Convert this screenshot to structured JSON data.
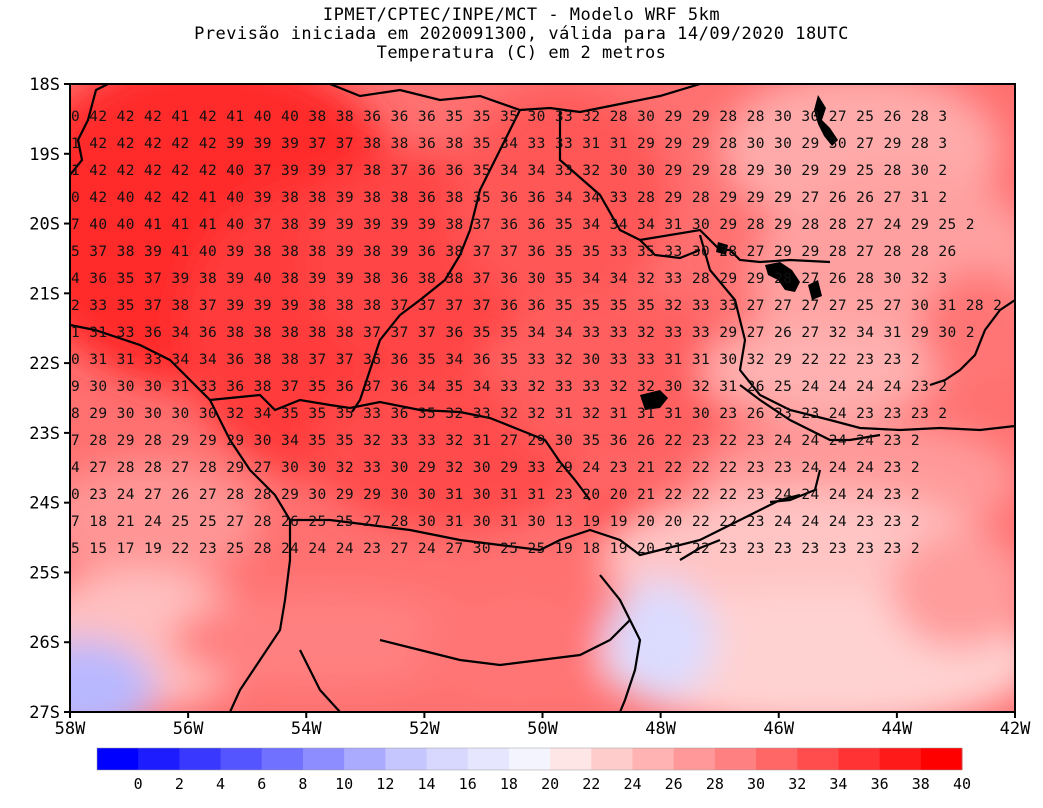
{
  "titles": {
    "line1": "IPMET/CPTEC/INPE/MCT - Modelo WRF 5km",
    "line2": "Previsão iniciada em 2020091300, válida para 14/09/2020 18UTC",
    "line3": "Temperatura (C) em 2 metros"
  },
  "map": {
    "lon_range": [
      -58,
      -42
    ],
    "lat_range": [
      -27,
      -18
    ],
    "lon_labels": [
      "58W",
      "56W",
      "54W",
      "52W",
      "50W",
      "48W",
      "46W",
      "44W",
      "42W"
    ],
    "lat_labels": [
      "18S",
      "19S",
      "20S",
      "21S",
      "22S",
      "23S",
      "24S",
      "25S",
      "26S",
      "27S"
    ],
    "grid_rows": [
      "0 42 42 42 41 42 41 40 40 38 38 36 36 36 35 35 35 30 33 32 28 30 29 29 28 28 30 30 27 25 26 28 3",
      "1 42 42 42 42 42 39 39 39 37 37 38 38 36 38 35 34 33 33 31 31 29 29 29 28 30 30 29 30 27 29 28 3",
      "1 42 42 42 42 42 40 37 39 39 37 38 37 36 36 35 34 34 33 32 30 30 29 29 28 29 30 29 29 25 28 30 2",
      "0 42 40 42 42 41 40 39 38 38 39 38 38 36 38 35 36 36 34 34 33 28 29 28 29 29 29 27 26 26 27 31 2",
      "7 40 40 41 41 41 40 37 38 39 39 39 39 39 38 37 36 36 35 34 34 34 31 30 29 28 29 28 28 27 24 29 25 2",
      "5 37 38 39 41 40 39 38 38 38 39 38 39 36 38 37 37 36 35 35 33 35 33 30 28 27 29 29 28 27 28 28 26",
      "4 36 35 37 39 38 39 40 38 39 39 38 36 38 38 37 36 30 35 34 34 32 33 28 29 29 28 27 26 28 30 32 3",
      "2 33 35 37 38 37 39 39 39 38 38 38 37 37 37 37 36 36 35 35 35 35 32 33 33 27 27 27 27 25 27 30 31 28 2",
      "1 31 33 36 34 36 38 38 38 38 38 37 37 37 36 35 35 34 34 33 33 32 33 33 29 27 26 27 32 34 31 29 30 2",
      "0 31 31 33 34 34 36 38 38 37 37 36 36 35 34 36 35 33 32 30 33 33 31 31 30 32 29 22 22 23 23 2",
      "9 30 30 30 31 33 36 38 37 35 36 37 36 34 35 34 33 32 33 33 32 32 30 32 31 26 25 24 24 24 24 23 2",
      "8 29 30 30 30 30 32 34 35 35 35 33 36 35 32 33 32 32 31 32 31 31 31 30 23 26 23 23 24 23 23 23 2",
      "7 28 29 28 29 29 29 30 34 35 35 32 33 33 32 31 27 29 30 35 36 26 22 23 22 23 24 24 24 24 23 2",
      "4 27 28 28 27 28 29 27 30 30 32 33 30 29 32 30 29 33 29 24 23 21 22 22 22 23 23 24 24 24 23 2",
      "0 23 24 27 26 27 28 28 29 30 29 29 30 30 31 30 31 31 23 20 20 21 22 22 22 23 24 24 24 24 23 2",
      "7 18 21 24 25 25 27 28 26 25 25 27 28 30 31 30 31 30 13 19 19 20 20 22 22 23 24 24 24 23 23 2",
      "5 15 17 19 22 23 25 28 24 24 24 23 27 24 27 30 25 25 19 18 19 20 21 22 23 23 23 23 23 23 23 2"
    ]
  },
  "colorbar": {
    "labels": [
      "0",
      "2",
      "4",
      "6",
      "8",
      "10",
      "12",
      "14",
      "16",
      "18",
      "20",
      "22",
      "24",
      "26",
      "28",
      "30",
      "32",
      "34",
      "36",
      "38",
      "40"
    ],
    "colors": [
      "#0000ff",
      "#1c1cff",
      "#3838ff",
      "#5555ff",
      "#7171ff",
      "#8d8dff",
      "#aaaaff",
      "#c6c6ff",
      "#d8d8ff",
      "#e6e6ff",
      "#f4f4ff",
      "#ffe6e6",
      "#ffcccc",
      "#ffb3b3",
      "#ff9999",
      "#ff8080",
      "#ff6666",
      "#ff4d4d",
      "#ff3333",
      "#ff1a1a",
      "#ff0000"
    ]
  }
}
